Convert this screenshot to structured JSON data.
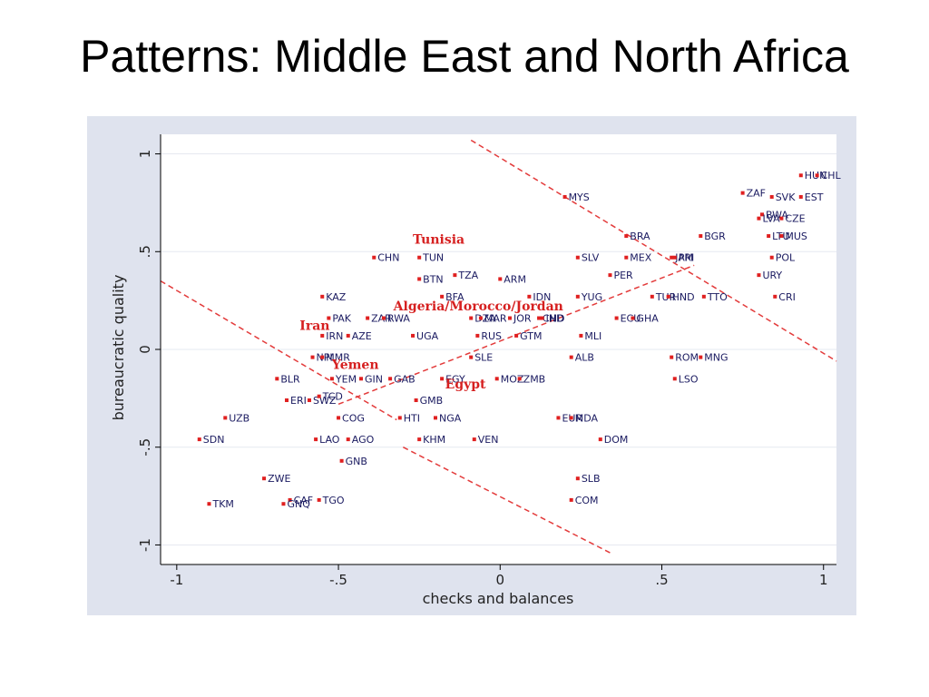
{
  "slide": {
    "title": "Patterns: Middle East and North Africa"
  },
  "chart_data": {
    "type": "scatter",
    "xlabel": "checks and balances",
    "ylabel": "bureaucratic quality",
    "xlim": [
      -1.05,
      1.04
    ],
    "ylim": [
      -1.1,
      1.1
    ],
    "xticks": [
      -1,
      -0.5,
      0,
      0.5,
      1
    ],
    "xtick_labels": [
      "-1",
      "-.5",
      "0",
      ".5",
      "1"
    ],
    "yticks": [
      -1,
      -0.5,
      0,
      0.5,
      1
    ],
    "ytick_labels": [
      "-1",
      "-.5",
      "0",
      ".5",
      "1"
    ],
    "grid": true,
    "marker_color": "#e02020",
    "label_color": "#1a1a60",
    "plot_region_color": "#dfe3ee",
    "points": [
      {
        "label": "HUN",
        "x": 0.93,
        "y": 0.89
      },
      {
        "label": "CHL",
        "x": 0.98,
        "y": 0.89
      },
      {
        "label": "ZAF",
        "x": 0.75,
        "y": 0.8
      },
      {
        "label": "SVK",
        "x": 0.84,
        "y": 0.78
      },
      {
        "label": "EST",
        "x": 0.93,
        "y": 0.78
      },
      {
        "label": "MYS",
        "x": 0.2,
        "y": 0.78
      },
      {
        "label": "BWA",
        "x": 0.81,
        "y": 0.69
      },
      {
        "label": "LVA",
        "x": 0.8,
        "y": 0.67
      },
      {
        "label": "CZE",
        "x": 0.87,
        "y": 0.67
      },
      {
        "label": "BRA",
        "x": 0.39,
        "y": 0.58
      },
      {
        "label": "BGR",
        "x": 0.62,
        "y": 0.58
      },
      {
        "label": "LTU",
        "x": 0.83,
        "y": 0.58
      },
      {
        "label": "MUS",
        "x": 0.87,
        "y": 0.58
      },
      {
        "label": "CHN",
        "x": -0.39,
        "y": 0.47
      },
      {
        "label": "TUN",
        "x": -0.25,
        "y": 0.47
      },
      {
        "label": "SLV",
        "x": 0.24,
        "y": 0.47
      },
      {
        "label": "MEX",
        "x": 0.39,
        "y": 0.47
      },
      {
        "label": "JAM",
        "x": 0.53,
        "y": 0.47
      },
      {
        "label": "PRI",
        "x": 0.54,
        "y": 0.47
      },
      {
        "label": "POL",
        "x": 0.84,
        "y": 0.47
      },
      {
        "label": "BTN",
        "x": -0.25,
        "y": 0.36
      },
      {
        "label": "TZA",
        "x": -0.14,
        "y": 0.38
      },
      {
        "label": "ARM",
        "x": 0.0,
        "y": 0.36
      },
      {
        "label": "PER",
        "x": 0.34,
        "y": 0.38
      },
      {
        "label": "URY",
        "x": 0.8,
        "y": 0.38
      },
      {
        "label": "KAZ",
        "x": -0.55,
        "y": 0.27
      },
      {
        "label": "BFA",
        "x": -0.18,
        "y": 0.27
      },
      {
        "label": "IDN",
        "x": 0.09,
        "y": 0.27
      },
      {
        "label": "YUG",
        "x": 0.24,
        "y": 0.27
      },
      {
        "label": "TUR",
        "x": 0.47,
        "y": 0.27
      },
      {
        "label": "HND",
        "x": 0.52,
        "y": 0.27
      },
      {
        "label": "TTO",
        "x": 0.63,
        "y": 0.27
      },
      {
        "label": "CRI",
        "x": 0.85,
        "y": 0.27
      },
      {
        "label": "PAK",
        "x": -0.53,
        "y": 0.16
      },
      {
        "label": "ZAR",
        "x": -0.41,
        "y": 0.16
      },
      {
        "label": "RWA",
        "x": -0.36,
        "y": 0.16
      },
      {
        "label": "DZA",
        "x": -0.09,
        "y": 0.16
      },
      {
        "label": "MAR",
        "x": -0.06,
        "y": 0.16
      },
      {
        "label": "JOR",
        "x": 0.03,
        "y": 0.16
      },
      {
        "label": "CHD",
        "x": 0.12,
        "y": 0.16
      },
      {
        "label": "IND",
        "x": 0.13,
        "y": 0.16
      },
      {
        "label": "ECU",
        "x": 0.36,
        "y": 0.16
      },
      {
        "label": "GHA",
        "x": 0.41,
        "y": 0.16
      },
      {
        "label": "IRN",
        "x": -0.55,
        "y": 0.07
      },
      {
        "label": "AZE",
        "x": -0.47,
        "y": 0.07
      },
      {
        "label": "UGA",
        "x": -0.27,
        "y": 0.07
      },
      {
        "label": "RUS",
        "x": -0.07,
        "y": 0.07
      },
      {
        "label": "GTM",
        "x": 0.05,
        "y": 0.07
      },
      {
        "label": "MLI",
        "x": 0.25,
        "y": 0.07
      },
      {
        "label": "NPL",
        "x": -0.58,
        "y": -0.04
      },
      {
        "label": "MMR",
        "x": -0.55,
        "y": -0.04
      },
      {
        "label": "SLE",
        "x": -0.09,
        "y": -0.04
      },
      {
        "label": "ALB",
        "x": 0.22,
        "y": -0.04
      },
      {
        "label": "ROM",
        "x": 0.53,
        "y": -0.04
      },
      {
        "label": "MNG",
        "x": 0.62,
        "y": -0.04
      },
      {
        "label": "BLR",
        "x": -0.69,
        "y": -0.15
      },
      {
        "label": "YEM",
        "x": -0.52,
        "y": -0.15
      },
      {
        "label": "GIN",
        "x": -0.43,
        "y": -0.15
      },
      {
        "label": "GAB",
        "x": -0.34,
        "y": -0.15
      },
      {
        "label": "EGY",
        "x": -0.18,
        "y": -0.15
      },
      {
        "label": "MOZ",
        "x": -0.01,
        "y": -0.15
      },
      {
        "label": "ZMB",
        "x": 0.06,
        "y": -0.15
      },
      {
        "label": "LSO",
        "x": 0.54,
        "y": -0.15
      },
      {
        "label": "ERI",
        "x": -0.66,
        "y": -0.26
      },
      {
        "label": "SWZ",
        "x": -0.59,
        "y": -0.26
      },
      {
        "label": "TCD",
        "x": -0.56,
        "y": -0.24
      },
      {
        "label": "GMB",
        "x": -0.26,
        "y": -0.26
      },
      {
        "label": "UZB",
        "x": -0.85,
        "y": -0.35
      },
      {
        "label": "COG",
        "x": -0.5,
        "y": -0.35
      },
      {
        "label": "HTI",
        "x": -0.31,
        "y": -0.35
      },
      {
        "label": "NGA",
        "x": -0.2,
        "y": -0.35
      },
      {
        "label": "EUR",
        "x": 0.18,
        "y": -0.35
      },
      {
        "label": "MDA",
        "x": 0.22,
        "y": -0.35
      },
      {
        "label": "SDN",
        "x": -0.93,
        "y": -0.46
      },
      {
        "label": "LAO",
        "x": -0.57,
        "y": -0.46
      },
      {
        "label": "AGO",
        "x": -0.47,
        "y": -0.46
      },
      {
        "label": "KHM",
        "x": -0.25,
        "y": -0.46
      },
      {
        "label": "VEN",
        "x": -0.08,
        "y": -0.46
      },
      {
        "label": "DOM",
        "x": 0.31,
        "y": -0.46
      },
      {
        "label": "GNB",
        "x": -0.49,
        "y": -0.57
      },
      {
        "label": "ZWE",
        "x": -0.73,
        "y": -0.66
      },
      {
        "label": "SLB",
        "x": 0.24,
        "y": -0.66
      },
      {
        "label": "CAF",
        "x": -0.65,
        "y": -0.77
      },
      {
        "label": "TGO",
        "x": -0.56,
        "y": -0.77
      },
      {
        "label": "GNQ",
        "x": -0.67,
        "y": -0.79
      },
      {
        "label": "COM",
        "x": 0.22,
        "y": -0.77
      },
      {
        "label": "TKM",
        "x": -0.9,
        "y": -0.79
      }
    ],
    "annotations": [
      {
        "label": "Tunisia",
        "x": -0.27,
        "y": 0.54
      },
      {
        "label": "Algeria/Morocco/Jordan",
        "x": -0.33,
        "y": 0.2
      },
      {
        "label": "Iran",
        "x": -0.62,
        "y": 0.1
      },
      {
        "label": "Yemen",
        "x": -0.52,
        "y": -0.1
      },
      {
        "label": "Egypt",
        "x": -0.17,
        "y": -0.2
      }
    ],
    "reference_lines": [
      {
        "from": [
          -1.05,
          0.35
        ],
        "to": [
          -0.32,
          -0.36
        ]
      },
      {
        "from": [
          -0.09,
          1.07
        ],
        "to": [
          1.04,
          -0.06
        ]
      },
      {
        "from": [
          -0.5,
          -0.28
        ],
        "to": [
          0.6,
          0.43
        ]
      },
      {
        "from": [
          -0.3,
          -0.5
        ],
        "to": [
          0.34,
          -1.04
        ]
      }
    ]
  }
}
